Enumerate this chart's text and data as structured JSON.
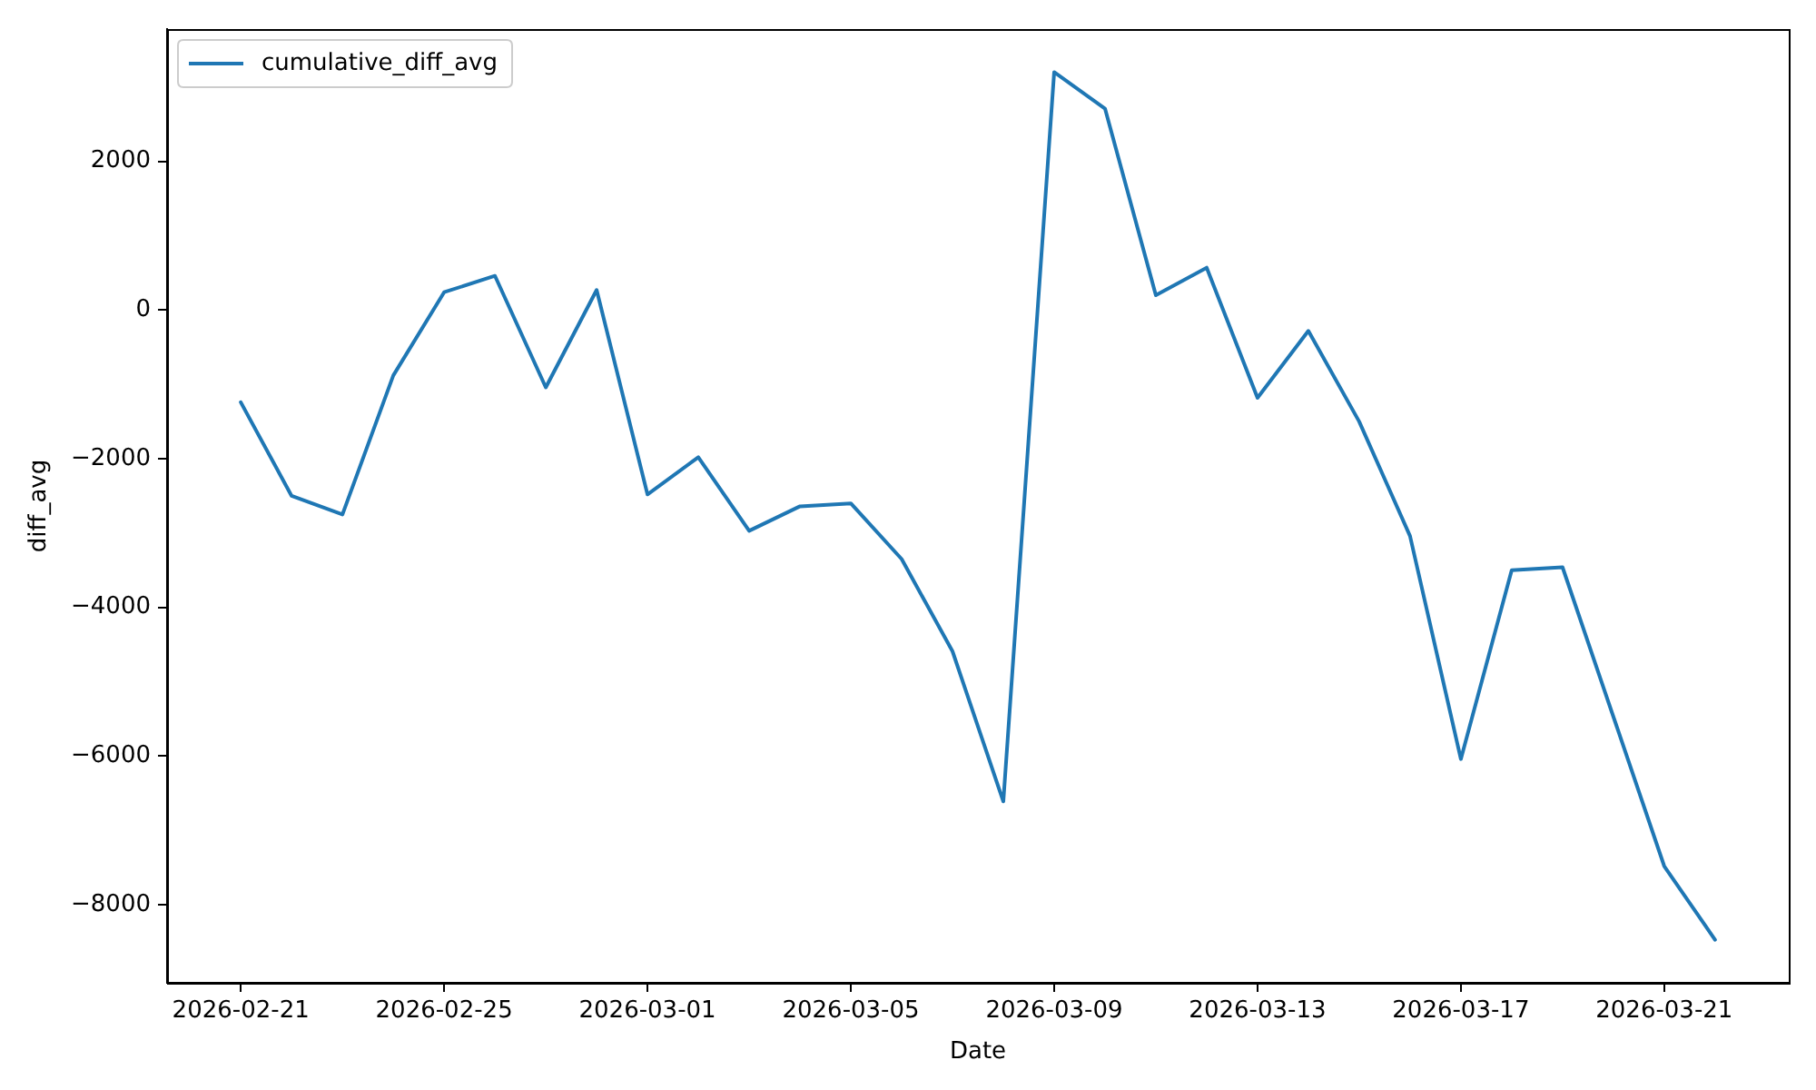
{
  "chart_data": {
    "type": "line",
    "xlabel": "Date",
    "ylabel": "diff_avg",
    "x": [
      "2026-02-21",
      "2026-02-22",
      "2026-02-23",
      "2026-02-24",
      "2026-02-25",
      "2026-02-26",
      "2026-02-27",
      "2026-02-28",
      "2026-03-01",
      "2026-03-02",
      "2026-03-03",
      "2026-03-04",
      "2026-03-05",
      "2026-03-06",
      "2026-03-07",
      "2026-03-08",
      "2026-03-09",
      "2026-03-10",
      "2026-03-11",
      "2026-03-12",
      "2026-03-13",
      "2026-03-14",
      "2026-03-15",
      "2026-03-16",
      "2026-03-17",
      "2026-03-18",
      "2026-03-19",
      "2026-03-20",
      "2026-03-21",
      "2026-03-22"
    ],
    "series": [
      {
        "name": "cumulative_diff_avg",
        "color": "#1f77b4",
        "values": [
          -1240,
          -2500,
          -2750,
          -880,
          240,
          460,
          -1040,
          270,
          -2480,
          -1980,
          -2970,
          -2640,
          -2600,
          -3350,
          -4590,
          -6610,
          3200,
          2710,
          200,
          570,
          -1180,
          -280,
          -1500,
          -3040,
          -6040,
          -3500,
          -3460,
          -5470,
          -7480,
          -8470
        ]
      }
    ],
    "xlim": [
      "2026-02-19T13:12",
      "2026-03-23T10:48"
    ],
    "xticks": [
      "2026-02-21",
      "2026-02-25",
      "2026-03-01",
      "2026-03-05",
      "2026-03-09",
      "2026-03-13",
      "2026-03-17",
      "2026-03-21"
    ],
    "ylim": [
      -9050,
      3780
    ],
    "yticks": [
      -8000,
      -6000,
      -4000,
      -2000,
      0,
      2000
    ],
    "legend": "top left",
    "marker": "none",
    "line_style": "solid"
  }
}
